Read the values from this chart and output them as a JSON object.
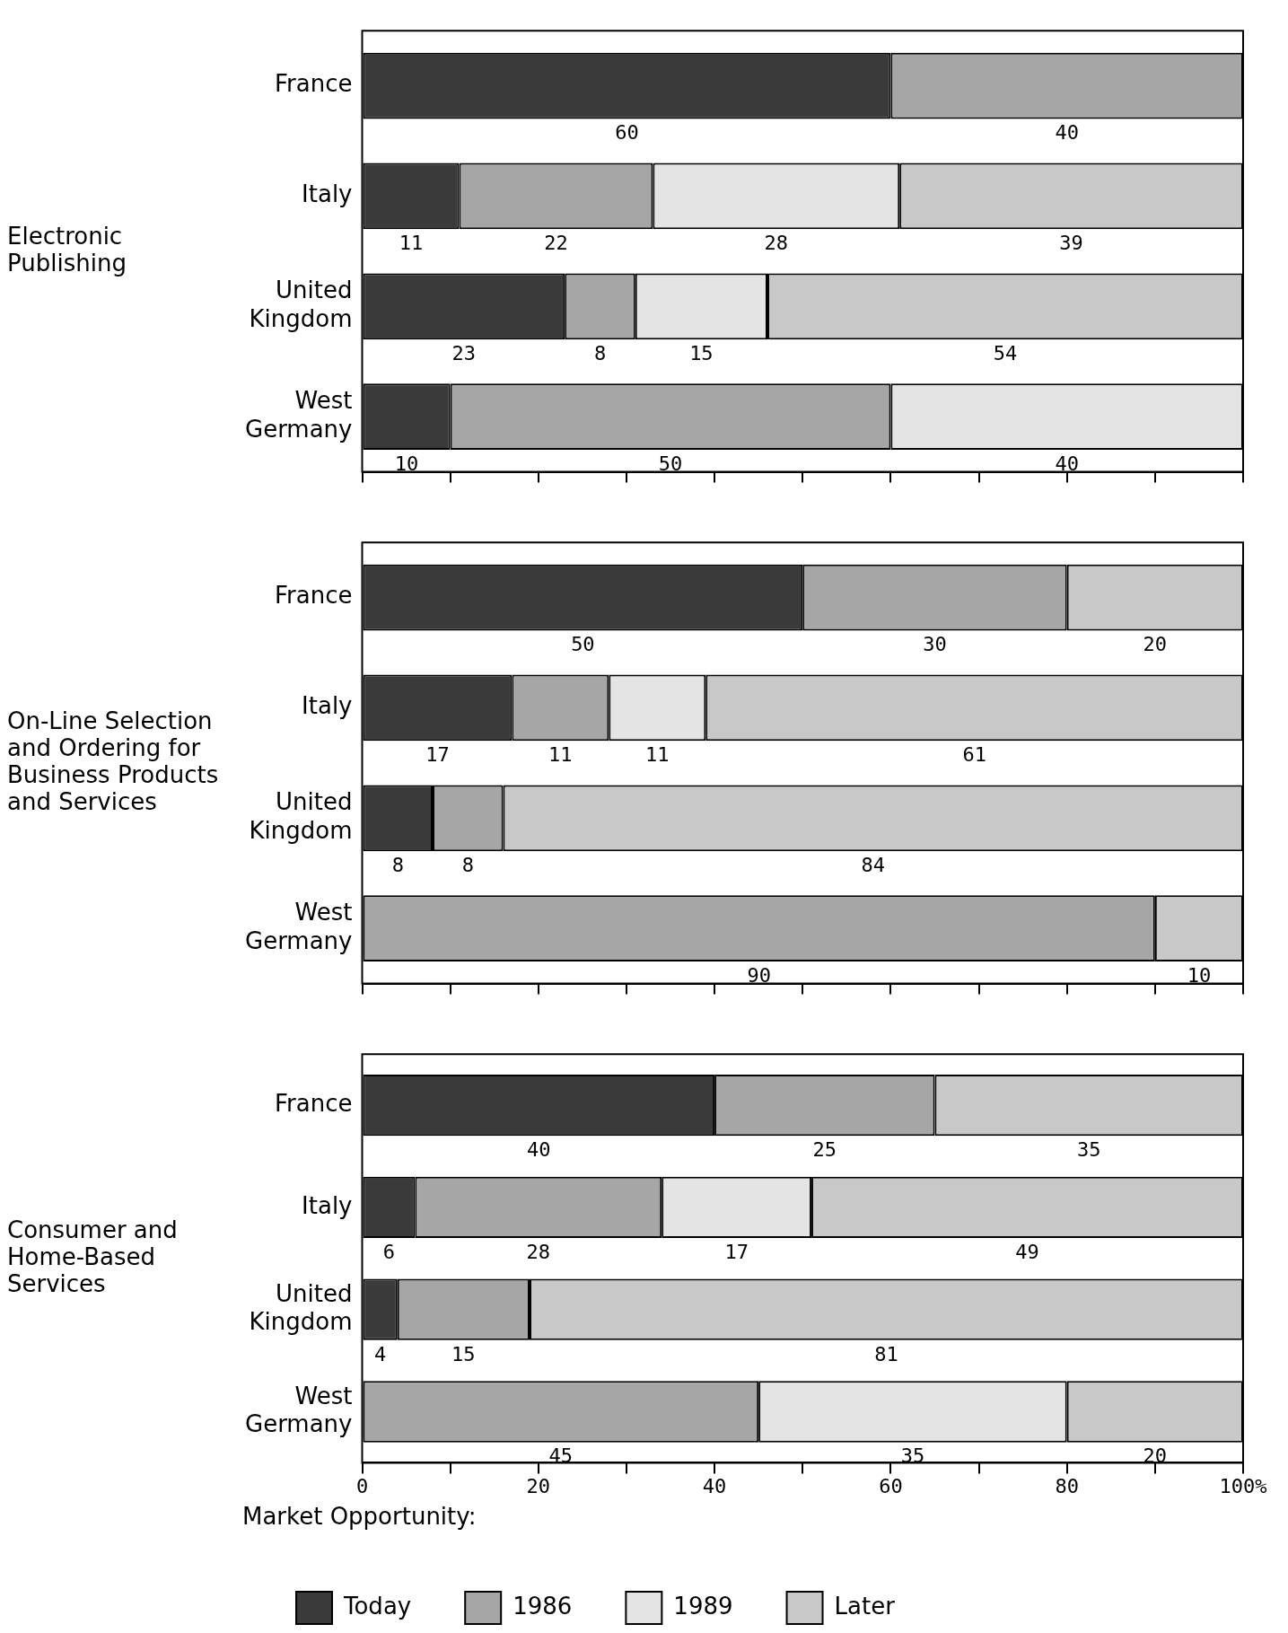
{
  "chart_data": [
    {
      "type": "bar",
      "orientation": "horizontal",
      "stacked": true,
      "ylabel": "Electronic Publishing",
      "categories": [
        "France",
        "Italy",
        "United Kingdom",
        "West Germany"
      ],
      "series": [
        {
          "color": "#3a3a3a",
          "values": [
            60,
            11,
            23,
            10
          ]
        },
        {
          "color": "#a6a6a6",
          "values": [
            40,
            22,
            8,
            50
          ]
        },
        {
          "color": "#e4e4e4",
          "values": [
            null,
            28,
            15,
            40
          ]
        },
        {
          "color": "#c8c8c8",
          "values": [
            null,
            39,
            54,
            null
          ]
        }
      ],
      "xlim": [
        0,
        100
      ],
      "xticks": [
        0,
        {
          "value": 10,
          "label": null
        },
        20,
        {
          "value": 30,
          "label": null
        },
        40,
        {
          "value": 50,
          "label": null
        },
        60,
        {
          "value": 70,
          "label": null
        },
        80,
        {
          "value": 90,
          "label": null
        },
        100
      ],
      "tick_labels": "y",
      "data_labels": true
    },
    {
      "type": "bar",
      "orientation": "horizontal",
      "stacked": true,
      "ylabel": "On-Line Selection and Ordering for Business Products and Services",
      "categories": [
        "France",
        "Italy",
        "United Kingdom",
        "West Germany"
      ],
      "series": [
        {
          "color": "#3a3a3a",
          "values": [
            50,
            17,
            8,
            null
          ]
        },
        {
          "color": "#a6a6a6",
          "values": [
            30,
            11,
            8,
            90
          ]
        },
        {
          "color": "#e4e4e4",
          "values": [
            null,
            11,
            null,
            null
          ]
        },
        {
          "color": "#c8c8c8",
          "values": [
            20,
            61,
            84,
            10
          ]
        }
      ],
      "xlim": [
        0,
        100
      ],
      "xticks": [
        0,
        {
          "value": 10,
          "label": null
        },
        20,
        {
          "value": 30,
          "label": null
        },
        40,
        {
          "value": 50,
          "label": null
        },
        60,
        {
          "value": 70,
          "label": null
        },
        80,
        {
          "value": 90,
          "label": null
        },
        100
      ],
      "tick_labels": "y",
      "data_labels": true
    },
    {
      "type": "bar",
      "orientation": "horizontal",
      "stacked": true,
      "ylabel": "Consumer and Home-Based Services",
      "categories": [
        "France",
        "Italy",
        "United Kingdom",
        "West Germany"
      ],
      "series": [
        {
          "name": "Today",
          "color": "#3a3a3a",
          "values": [
            40,
            6,
            4,
            null
          ]
        },
        {
          "name": "1986",
          "color": "#a6a6a6",
          "values": [
            25,
            28,
            15,
            45
          ]
        },
        {
          "name": "1989",
          "color": "#e4e4e4",
          "values": [
            null,
            17,
            null,
            35
          ]
        },
        {
          "name": "Later",
          "color": "#c8c8c8",
          "values": [
            35,
            49,
            81,
            20
          ]
        }
      ],
      "xlim": [
        0,
        100
      ],
      "xticks": [
        0,
        {
          "value": 10,
          "label": null
        },
        20,
        {
          "value": 30,
          "label": null
        },
        40,
        {
          "value": 50,
          "label": null
        },
        60,
        {
          "value": 70,
          "label": null
        },
        80,
        {
          "value": 90,
          "label": null
        },
        {
          "value": 100,
          "label": "100%"
        }
      ],
      "data_labels": true,
      "legend": "bottom",
      "legend_title": "Market Opportunity:"
    }
  ]
}
